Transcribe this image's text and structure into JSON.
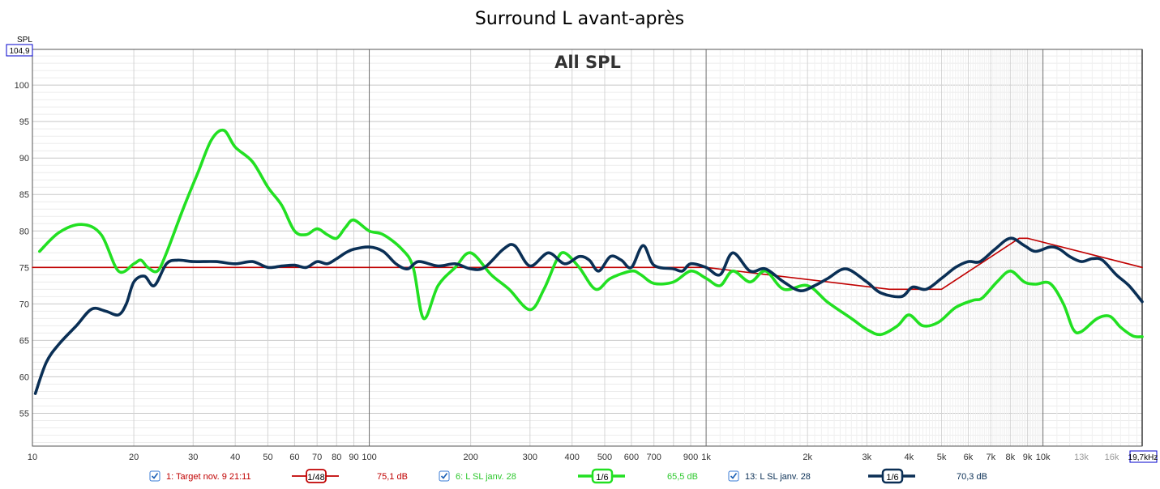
{
  "chart_data": {
    "type": "line",
    "title": "Surround L avant-après",
    "overlay_label": "All SPL",
    "ylabel": "SPL",
    "y_top_value": "104,9",
    "x_end_label": "19,7kHz",
    "x_scale": "log",
    "xlim": [
      10,
      19700
    ],
    "ylim": [
      50.5,
      104.9
    ],
    "grid": true,
    "y_ticks": [
      55,
      60,
      65,
      70,
      75,
      80,
      85,
      90,
      95,
      100
    ],
    "x_tick_labels": [
      {
        "v": 10,
        "t": "10",
        "grey": false
      },
      {
        "v": 20,
        "t": "20",
        "grey": false
      },
      {
        "v": 30,
        "t": "30",
        "grey": false
      },
      {
        "v": 40,
        "t": "40",
        "grey": false
      },
      {
        "v": 50,
        "t": "50",
        "grey": false
      },
      {
        "v": 60,
        "t": "60",
        "grey": false
      },
      {
        "v": 70,
        "t": "70",
        "grey": false
      },
      {
        "v": 80,
        "t": "80",
        "grey": false
      },
      {
        "v": 90,
        "t": "90",
        "grey": false
      },
      {
        "v": 100,
        "t": "100",
        "grey": false
      },
      {
        "v": 200,
        "t": "200",
        "grey": false
      },
      {
        "v": 300,
        "t": "300",
        "grey": false
      },
      {
        "v": 400,
        "t": "400",
        "grey": false
      },
      {
        "v": 500,
        "t": "500",
        "grey": false
      },
      {
        "v": 600,
        "t": "600",
        "grey": false
      },
      {
        "v": 700,
        "t": "700",
        "grey": false
      },
      {
        "v": 900,
        "t": "900",
        "grey": false
      },
      {
        "v": 1000,
        "t": "1k",
        "grey": false
      },
      {
        "v": 2000,
        "t": "2k",
        "grey": false
      },
      {
        "v": 3000,
        "t": "3k",
        "grey": false
      },
      {
        "v": 4000,
        "t": "4k",
        "grey": false
      },
      {
        "v": 5000,
        "t": "5k",
        "grey": false
      },
      {
        "v": 6000,
        "t": "6k",
        "grey": false
      },
      {
        "v": 7000,
        "t": "7k",
        "grey": false
      },
      {
        "v": 8000,
        "t": "8k",
        "grey": false
      },
      {
        "v": 9000,
        "t": "9k",
        "grey": false
      },
      {
        "v": 10000,
        "t": "10k",
        "grey": false
      },
      {
        "v": 13000,
        "t": "13k",
        "grey": true
      },
      {
        "v": 16000,
        "t": "16k",
        "grey": true
      }
    ],
    "series": [
      {
        "name": "1: Target nov. 9 21:11",
        "smoothing": "1/48",
        "level": "75,1 dB",
        "color": "#c00000",
        "points": [
          [
            10,
            75
          ],
          [
            1000,
            75
          ],
          [
            3500,
            72
          ],
          [
            5000,
            72
          ],
          [
            8500,
            79
          ],
          [
            9000,
            79
          ],
          [
            19700,
            75
          ]
        ]
      },
      {
        "name": "6: L SL janv. 28",
        "smoothing": "1/6",
        "level": "65,5 dB",
        "color": "#22e022",
        "points": [
          [
            10.5,
            77.2
          ],
          [
            12,
            79.8
          ],
          [
            14,
            80.9
          ],
          [
            16,
            79.5
          ],
          [
            18,
            74.5
          ],
          [
            20,
            75.5
          ],
          [
            21,
            76
          ],
          [
            22,
            75
          ],
          [
            23.5,
            74.5
          ],
          [
            25,
            77
          ],
          [
            28,
            83
          ],
          [
            31,
            88
          ],
          [
            34,
            92.5
          ],
          [
            37,
            93.8
          ],
          [
            40,
            91.5
          ],
          [
            45,
            89.5
          ],
          [
            50,
            86
          ],
          [
            55,
            83.5
          ],
          [
            60,
            80
          ],
          [
            65,
            79.5
          ],
          [
            70,
            80.3
          ],
          [
            75,
            79.5
          ],
          [
            80,
            79
          ],
          [
            85,
            80.5
          ],
          [
            90,
            81.5
          ],
          [
            100,
            80
          ],
          [
            110,
            79.5
          ],
          [
            125,
            77.5
          ],
          [
            135,
            75
          ],
          [
            145,
            68
          ],
          [
            160,
            72.5
          ],
          [
            180,
            75
          ],
          [
            200,
            77
          ],
          [
            230,
            74
          ],
          [
            260,
            72
          ],
          [
            300,
            69.2
          ],
          [
            330,
            72
          ],
          [
            360,
            76
          ],
          [
            380,
            77
          ],
          [
            420,
            75
          ],
          [
            470,
            72
          ],
          [
            520,
            73.5
          ],
          [
            600,
            74.5
          ],
          [
            640,
            74
          ],
          [
            700,
            72.8
          ],
          [
            800,
            73
          ],
          [
            900,
            74.5
          ],
          [
            1000,
            73.5
          ],
          [
            1100,
            72.5
          ],
          [
            1200,
            74.5
          ],
          [
            1350,
            73
          ],
          [
            1500,
            74.5
          ],
          [
            1700,
            72
          ],
          [
            2000,
            72.5
          ],
          [
            2300,
            70.2
          ],
          [
            2700,
            68
          ],
          [
            3000,
            66.5
          ],
          [
            3300,
            65.8
          ],
          [
            3700,
            67
          ],
          [
            4000,
            68.5
          ],
          [
            4400,
            67
          ],
          [
            4900,
            67.5
          ],
          [
            5500,
            69.5
          ],
          [
            6200,
            70.5
          ],
          [
            6600,
            70.8
          ],
          [
            7300,
            73
          ],
          [
            8000,
            74.5
          ],
          [
            8800,
            73
          ],
          [
            9500,
            72.7
          ],
          [
            10500,
            72.8
          ],
          [
            11500,
            70
          ],
          [
            12300,
            66.5
          ],
          [
            13000,
            66.2
          ],
          [
            14500,
            68
          ],
          [
            15800,
            68.3
          ],
          [
            17000,
            66.8
          ],
          [
            18500,
            65.6
          ],
          [
            19700,
            65.5
          ]
        ]
      },
      {
        "name": "13: L SL janv. 28",
        "smoothing": "1/6",
        "level": "70,3 dB",
        "color": "#0a2f55",
        "points": [
          [
            10.2,
            57.7
          ],
          [
            11,
            62
          ],
          [
            12,
            64.5
          ],
          [
            13.5,
            67
          ],
          [
            15,
            69.3
          ],
          [
            16.5,
            69
          ],
          [
            18,
            68.5
          ],
          [
            19,
            70
          ],
          [
            20,
            73
          ],
          [
            21.5,
            73.8
          ],
          [
            23,
            72.5
          ],
          [
            25,
            75.5
          ],
          [
            27,
            76
          ],
          [
            30,
            75.8
          ],
          [
            35,
            75.8
          ],
          [
            40,
            75.5
          ],
          [
            45,
            75.8
          ],
          [
            50,
            75
          ],
          [
            55,
            75.2
          ],
          [
            60,
            75.3
          ],
          [
            65,
            75
          ],
          [
            70,
            75.8
          ],
          [
            75,
            75.5
          ],
          [
            80,
            76.2
          ],
          [
            85,
            77
          ],
          [
            90,
            77.5
          ],
          [
            100,
            77.8
          ],
          [
            110,
            77.2
          ],
          [
            120,
            75.5
          ],
          [
            130,
            74.8
          ],
          [
            140,
            75.8
          ],
          [
            160,
            75.2
          ],
          [
            180,
            75.5
          ],
          [
            200,
            74.8
          ],
          [
            220,
            75
          ],
          [
            250,
            77.5
          ],
          [
            270,
            78
          ],
          [
            300,
            75.2
          ],
          [
            340,
            77
          ],
          [
            380,
            75.5
          ],
          [
            420,
            76.5
          ],
          [
            450,
            76
          ],
          [
            480,
            74.5
          ],
          [
            520,
            76.5
          ],
          [
            560,
            76
          ],
          [
            600,
            75
          ],
          [
            650,
            78
          ],
          [
            700,
            75.3
          ],
          [
            800,
            74.8
          ],
          [
            850,
            74.5
          ],
          [
            900,
            75.5
          ],
          [
            1000,
            75
          ],
          [
            1100,
            74
          ],
          [
            1200,
            77
          ],
          [
            1350,
            74.5
          ],
          [
            1500,
            74.8
          ],
          [
            1700,
            73
          ],
          [
            1900,
            71.8
          ],
          [
            2100,
            72.5
          ],
          [
            2300,
            73.5
          ],
          [
            2600,
            74.8
          ],
          [
            3000,
            73
          ],
          [
            3300,
            71.5
          ],
          [
            3800,
            71
          ],
          [
            4100,
            72.3
          ],
          [
            4500,
            72
          ],
          [
            5000,
            73.5
          ],
          [
            5500,
            75
          ],
          [
            6000,
            75.8
          ],
          [
            6500,
            75.8
          ],
          [
            7200,
            77.5
          ],
          [
            8000,
            79
          ],
          [
            8800,
            78
          ],
          [
            9500,
            77.2
          ],
          [
            10500,
            77.8
          ],
          [
            11200,
            77.5
          ],
          [
            12000,
            76.5
          ],
          [
            13000,
            75.8
          ],
          [
            14000,
            76.2
          ],
          [
            15000,
            76
          ],
          [
            16500,
            74
          ],
          [
            18000,
            72.5
          ],
          [
            19700,
            70.3
          ]
        ]
      }
    ]
  },
  "legend": {
    "items": [
      {
        "label": "1: Target nov. 9 21:11",
        "smoothing": "1/48",
        "level": "75,1 dB",
        "color": "#c00000"
      },
      {
        "label": "6: L SL janv. 28",
        "smoothing": "1/6",
        "level": "65,5 dB",
        "color": "#22e022"
      },
      {
        "label": "13: L SL janv. 28",
        "smoothing": "1/6",
        "level": "70,3 dB",
        "color": "#0a2f55"
      }
    ]
  }
}
